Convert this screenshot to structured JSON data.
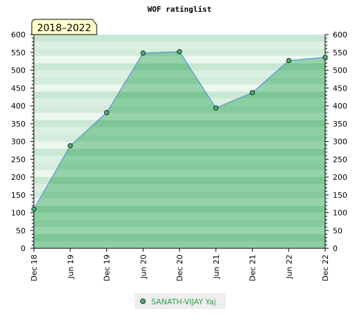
{
  "chart_data": {
    "type": "area",
    "title": "WOF ratinglist",
    "period_label": "2018–2022",
    "x": [
      "Dec 18",
      "Jun 19",
      "Dec 19",
      "Jun 20",
      "Dec 20",
      "Jun 21",
      "Dec 21",
      "Jun 22",
      "Dec 22"
    ],
    "series": [
      {
        "name": "SANATH-VIJAY Yaj",
        "values": [
          110,
          288,
          381,
          548,
          552,
          394,
          437,
          527,
          536
        ]
      }
    ],
    "ylim": [
      0,
      600
    ],
    "ytick_step": 50,
    "yminor_step": 10,
    "y_axis_both_sides": true,
    "legend_position": "bottom-center",
    "colors": {
      "line": "#5b9bd5",
      "fill": "#7fc49a",
      "marker": "#4daf6e",
      "legend_text": "#2e9e4a",
      "period_box": "#ffffcc"
    }
  }
}
